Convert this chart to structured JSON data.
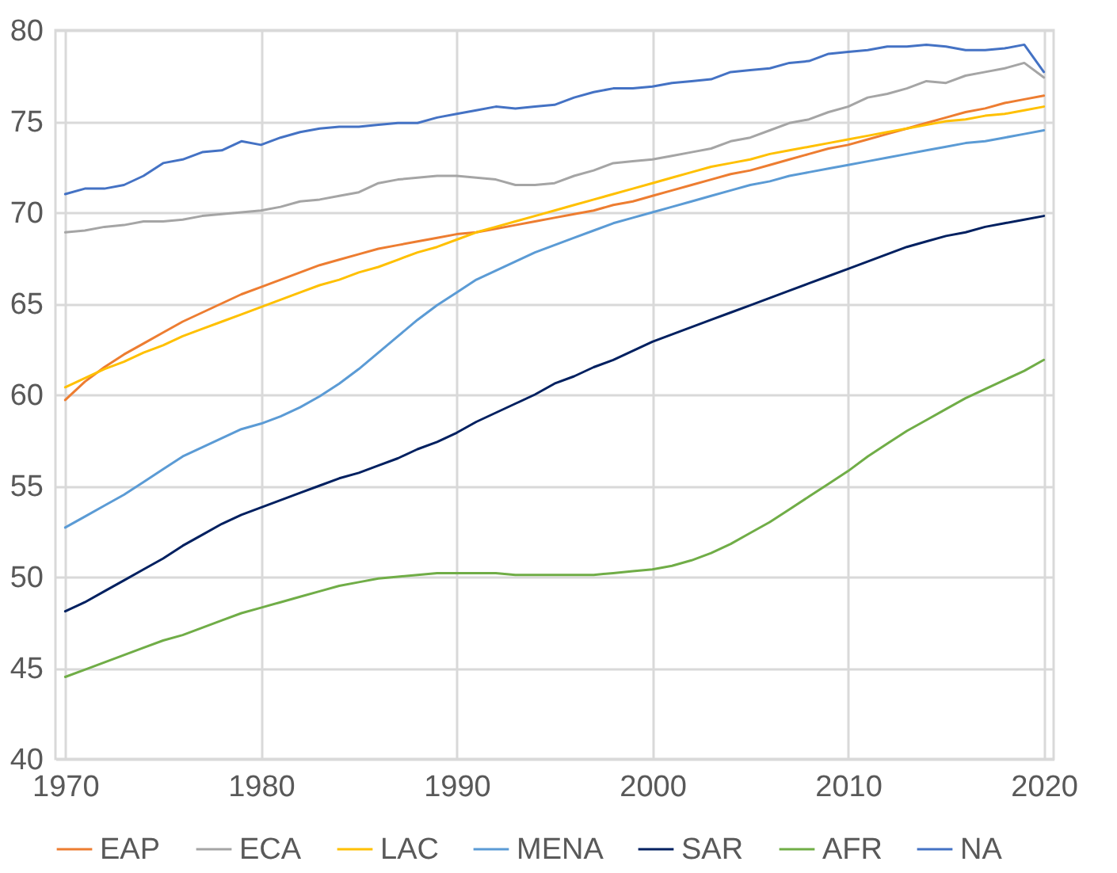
{
  "chart_data": {
    "type": "line",
    "x": [
      1970,
      1971,
      1972,
      1973,
      1974,
      1975,
      1976,
      1977,
      1978,
      1979,
      1980,
      1981,
      1982,
      1983,
      1984,
      1985,
      1986,
      1987,
      1988,
      1989,
      1990,
      1991,
      1992,
      1993,
      1994,
      1995,
      1996,
      1997,
      1998,
      1999,
      2000,
      2001,
      2002,
      2003,
      2004,
      2005,
      2006,
      2007,
      2008,
      2009,
      2010,
      2011,
      2012,
      2013,
      2014,
      2015,
      2016,
      2017,
      2018,
      2019,
      2020
    ],
    "xlim": [
      1969.5,
      2020.5
    ],
    "xticks": [
      1970,
      1980,
      1990,
      2000,
      2010,
      2020
    ],
    "ylim": [
      40,
      80
    ],
    "yticks": [
      40,
      45,
      50,
      55,
      60,
      65,
      70,
      75,
      80
    ],
    "grid": true,
    "legend": "bottom",
    "marker": "none",
    "line_style": "solid",
    "series": [
      {
        "name": "EAP",
        "color": "#ed7d31",
        "values": [
          59.7,
          60.7,
          61.5,
          62.2,
          62.8,
          63.4,
          64.0,
          64.5,
          65.0,
          65.5,
          65.9,
          66.3,
          66.7,
          67.1,
          67.4,
          67.7,
          68.0,
          68.2,
          68.4,
          68.6,
          68.8,
          68.9,
          69.1,
          69.3,
          69.5,
          69.7,
          69.9,
          70.1,
          70.4,
          70.6,
          70.9,
          71.2,
          71.5,
          71.8,
          72.1,
          72.3,
          72.6,
          72.9,
          73.2,
          73.5,
          73.7,
          74.0,
          74.3,
          74.6,
          74.9,
          75.2,
          75.5,
          75.7,
          76.0,
          76.2,
          76.4
        ]
      },
      {
        "name": "ECA",
        "color": "#a5a5a5",
        "values": [
          68.9,
          69.0,
          69.2,
          69.3,
          69.5,
          69.5,
          69.6,
          69.8,
          69.9,
          70.0,
          70.1,
          70.3,
          70.6,
          70.7,
          70.9,
          71.1,
          71.6,
          71.8,
          71.9,
          72.0,
          72.0,
          71.9,
          71.8,
          71.5,
          71.5,
          71.6,
          72.0,
          72.3,
          72.7,
          72.8,
          72.9,
          73.1,
          73.3,
          73.5,
          73.9,
          74.1,
          74.5,
          74.9,
          75.1,
          75.5,
          75.8,
          76.3,
          76.5,
          76.8,
          77.2,
          77.1,
          77.5,
          77.7,
          77.9,
          78.2,
          77.4
        ]
      },
      {
        "name": "LAC",
        "color": "#ffc000",
        "values": [
          60.4,
          60.9,
          61.4,
          61.8,
          62.3,
          62.7,
          63.2,
          63.6,
          64.0,
          64.4,
          64.8,
          65.2,
          65.6,
          66.0,
          66.3,
          66.7,
          67.0,
          67.4,
          67.8,
          68.1,
          68.5,
          68.9,
          69.2,
          69.5,
          69.8,
          70.1,
          70.4,
          70.7,
          71.0,
          71.3,
          71.6,
          71.9,
          72.2,
          72.5,
          72.7,
          72.9,
          73.2,
          73.4,
          73.6,
          73.8,
          74.0,
          74.2,
          74.4,
          74.6,
          74.8,
          75.0,
          75.1,
          75.3,
          75.4,
          75.6,
          75.8
        ]
      },
      {
        "name": "MENA",
        "color": "#5b9bd5",
        "values": [
          52.7,
          53.3,
          53.9,
          54.5,
          55.2,
          55.9,
          56.6,
          57.1,
          57.6,
          58.1,
          58.4,
          58.8,
          59.3,
          59.9,
          60.6,
          61.4,
          62.3,
          63.2,
          64.1,
          64.9,
          65.6,
          66.3,
          66.8,
          67.3,
          67.8,
          68.2,
          68.6,
          69.0,
          69.4,
          69.7,
          70.0,
          70.3,
          70.6,
          70.9,
          71.2,
          71.5,
          71.7,
          72.0,
          72.2,
          72.4,
          72.6,
          72.8,
          73.0,
          73.2,
          73.4,
          73.6,
          73.8,
          73.9,
          74.1,
          74.3,
          74.5
        ]
      },
      {
        "name": "SAR",
        "color": "#002060",
        "values": [
          48.1,
          48.6,
          49.2,
          49.8,
          50.4,
          51.0,
          51.7,
          52.3,
          52.9,
          53.4,
          53.8,
          54.2,
          54.6,
          55.0,
          55.4,
          55.7,
          56.1,
          56.5,
          57.0,
          57.4,
          57.9,
          58.5,
          59.0,
          59.5,
          60.0,
          60.6,
          61.0,
          61.5,
          61.9,
          62.4,
          62.9,
          63.3,
          63.7,
          64.1,
          64.5,
          64.9,
          65.3,
          65.7,
          66.1,
          66.5,
          66.9,
          67.3,
          67.7,
          68.1,
          68.4,
          68.7,
          68.9,
          69.2,
          69.4,
          69.6,
          69.8
        ]
      },
      {
        "name": "AFR",
        "color": "#70ad47",
        "values": [
          44.5,
          44.9,
          45.3,
          45.7,
          46.1,
          46.5,
          46.8,
          47.2,
          47.6,
          48.0,
          48.3,
          48.6,
          48.9,
          49.2,
          49.5,
          49.7,
          49.9,
          50.0,
          50.1,
          50.2,
          50.2,
          50.2,
          50.2,
          50.1,
          50.1,
          50.1,
          50.1,
          50.1,
          50.2,
          50.3,
          50.4,
          50.6,
          50.9,
          51.3,
          51.8,
          52.4,
          53.0,
          53.7,
          54.4,
          55.1,
          55.8,
          56.6,
          57.3,
          58.0,
          58.6,
          59.2,
          59.8,
          60.3,
          60.8,
          61.3,
          61.9
        ]
      },
      {
        "name": "NA",
        "color": "#4472c4",
        "values": [
          71.0,
          71.3,
          71.3,
          71.5,
          72.0,
          72.7,
          72.9,
          73.3,
          73.4,
          73.9,
          73.7,
          74.1,
          74.4,
          74.6,
          74.7,
          74.7,
          74.8,
          74.9,
          74.9,
          75.2,
          75.4,
          75.6,
          75.8,
          75.7,
          75.8,
          75.9,
          76.3,
          76.6,
          76.8,
          76.8,
          76.9,
          77.1,
          77.2,
          77.3,
          77.7,
          77.8,
          77.9,
          78.2,
          78.3,
          78.7,
          78.8,
          78.9,
          79.1,
          79.1,
          79.2,
          79.1,
          78.9,
          78.9,
          79.0,
          79.2,
          77.7
        ]
      }
    ]
  }
}
